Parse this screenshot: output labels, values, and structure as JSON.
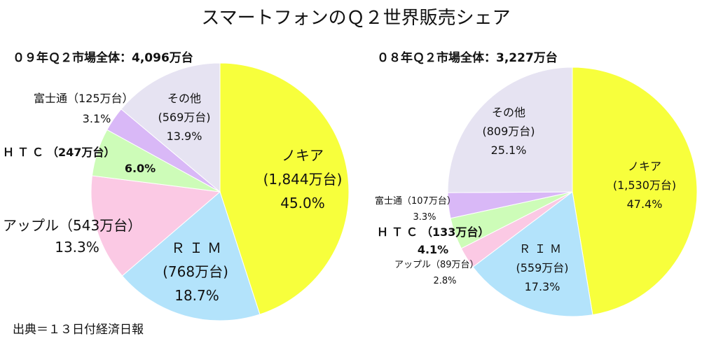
{
  "title": "スマートフォンのＱ２世界販売シェア",
  "source": "出典＝１３日付経済日報",
  "chart_data": [
    {
      "type": "pie",
      "subtitle": "０９年Ｑ２市場全体：4,096万台",
      "slices": [
        {
          "name": "ノキア",
          "units": "(1,844万台)",
          "value": 45.0,
          "pct": "45.0%",
          "color": "#f7ff3c"
        },
        {
          "name": "ＲＩＭ",
          "units": "(768万台)",
          "value": 18.7,
          "pct": "18.7%",
          "color": "#b3e3fb"
        },
        {
          "name": "アップル",
          "units": "（543万台）",
          "value": 13.3,
          "pct": "13.3%",
          "color": "#fbc9e4"
        },
        {
          "name": "ＨＴＣ",
          "units": "（247万台）",
          "value": 6.0,
          "pct": "6.0%",
          "color": "#cdfcb8"
        },
        {
          "name": "富士通",
          "units": "（125万台）",
          "value": 3.1,
          "pct": "3.1%",
          "color": "#d9b8f7"
        },
        {
          "name": "その他",
          "units": "(569万台)",
          "value": 13.9,
          "pct": "13.9%",
          "color": "#e6e3f2"
        }
      ]
    },
    {
      "type": "pie",
      "subtitle": "０８年Ｑ２市場全体：3,227万台",
      "slices": [
        {
          "name": "ノキア",
          "units": "(1,530万台)",
          "value": 47.4,
          "pct": "47.4%",
          "color": "#f7ff3c"
        },
        {
          "name": "ＲＩＭ",
          "units": "(559万台)",
          "value": 17.3,
          "pct": "17.3%",
          "color": "#b3e3fb"
        },
        {
          "name": "アップル",
          "units": "（89万台）",
          "value": 2.8,
          "pct": "2.8%",
          "color": "#fbc9e4"
        },
        {
          "name": "ＨＴＣ",
          "units": "（133万台）",
          "value": 4.1,
          "pct": "4.1%",
          "color": "#cdfcb8"
        },
        {
          "name": "富士通",
          "units": "（107万台）",
          "value": 3.3,
          "pct": "3.3%",
          "color": "#d9b8f7"
        },
        {
          "name": "その他",
          "units": "(809万台)",
          "value": 25.1,
          "pct": "25.1%",
          "color": "#e6e3f2"
        }
      ]
    }
  ]
}
